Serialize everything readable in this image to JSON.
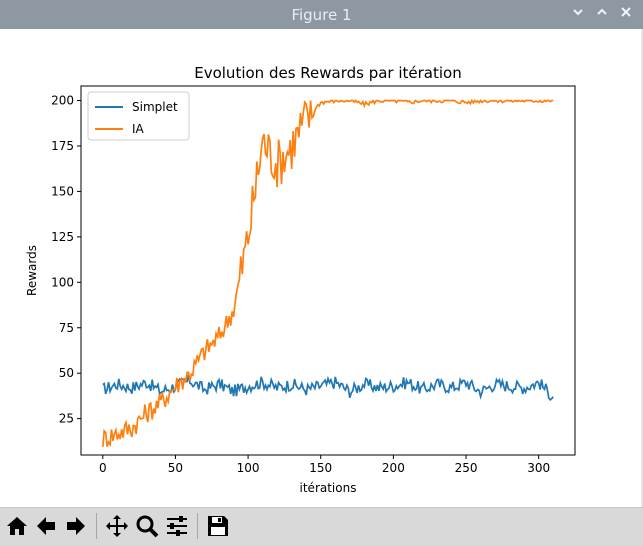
{
  "window": {
    "title": "Figure 1",
    "controls": [
      "chevron-down-icon",
      "chevron-up-icon",
      "close-icon"
    ]
  },
  "toolbar": {
    "buttons": [
      "home-icon",
      "back-icon",
      "forward-icon",
      "pan-icon",
      "zoom-icon",
      "configure-subplots-icon",
      "save-icon"
    ]
  },
  "chart_data": {
    "type": "line",
    "title": "Evolution des Rewards par itération",
    "xlabel": "itérations",
    "ylabel": "Rewards",
    "xlim": [
      -15,
      325
    ],
    "ylim": [
      5,
      208
    ],
    "xticks": [
      0,
      50,
      100,
      150,
      200,
      250,
      300
    ],
    "yticks": [
      25,
      50,
      75,
      100,
      125,
      150,
      175,
      200
    ],
    "legend": "upper-left",
    "grid": false,
    "series": [
      {
        "name": "Simplet",
        "color": "#1f77b4",
        "x": [
          0,
          10,
          20,
          30,
          40,
          50,
          60,
          70,
          80,
          90,
          100,
          110,
          120,
          130,
          140,
          150,
          160,
          170,
          180,
          190,
          200,
          210,
          220,
          230,
          240,
          250,
          260,
          270,
          280,
          290,
          300,
          310
        ],
        "values": [
          41,
          44,
          42,
          45,
          40,
          43,
          46,
          41,
          44,
          40,
          43,
          45,
          42,
          44,
          41,
          43,
          45,
          40,
          44,
          42,
          43,
          45,
          41,
          44,
          42,
          45,
          40,
          44,
          43,
          42,
          45,
          37
        ]
      },
      {
        "name": "IA",
        "color": "#ff7f0e",
        "x": [
          0,
          10,
          20,
          30,
          40,
          50,
          60,
          70,
          80,
          90,
          100,
          110,
          120,
          130,
          140,
          150,
          160,
          170,
          180,
          190,
          200,
          210,
          220,
          230,
          240,
          250,
          260,
          270,
          280,
          290,
          300,
          310
        ],
        "values": [
          14,
          17,
          20,
          28,
          34,
          43,
          50,
          62,
          70,
          85,
          125,
          178,
          165,
          175,
          190,
          199,
          200,
          200,
          198,
          200,
          200,
          199,
          200,
          200,
          200,
          199,
          200,
          200,
          200,
          200,
          200,
          200
        ]
      }
    ]
  }
}
